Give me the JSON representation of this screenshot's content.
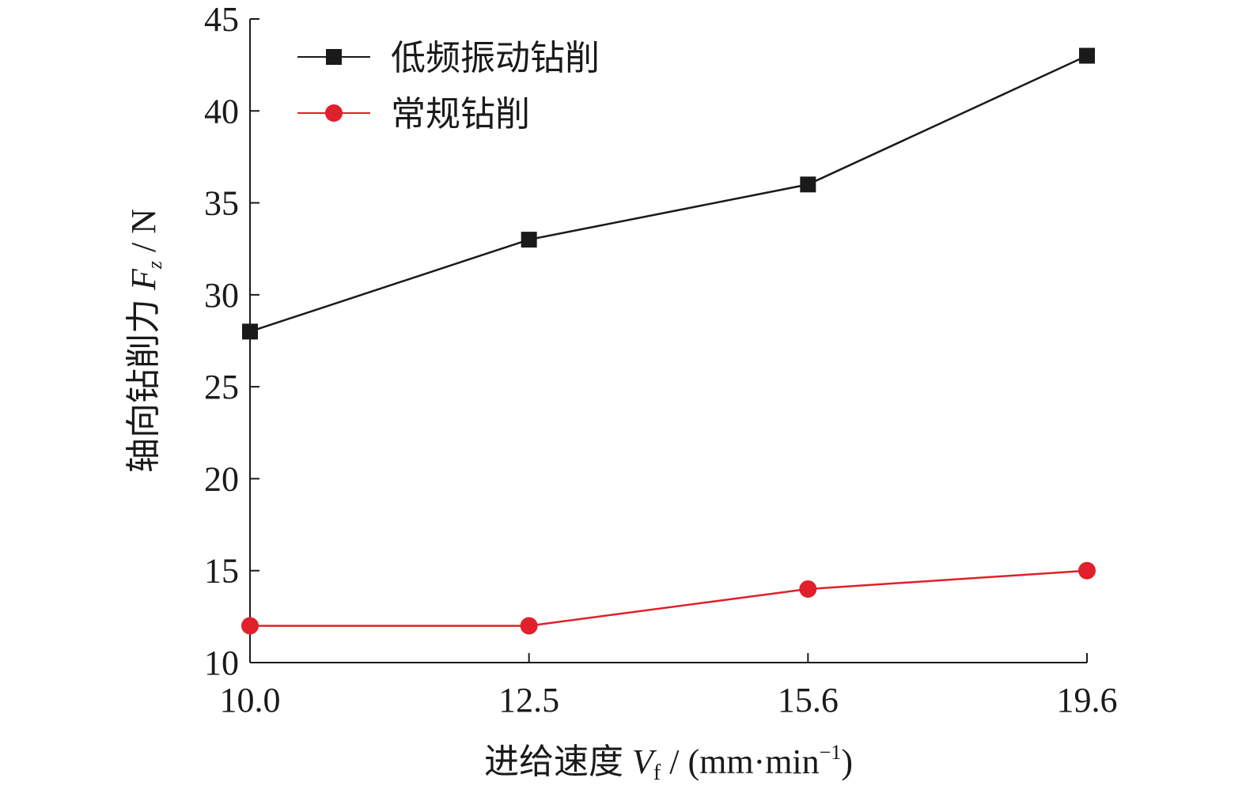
{
  "chart_data": {
    "type": "line",
    "x": [
      "10.0",
      "12.5",
      "15.6",
      "19.6"
    ],
    "x_values": [
      10.0,
      12.5,
      15.6,
      19.6
    ],
    "series": [
      {
        "name": "低频振动钻削",
        "values": [
          28,
          33,
          36,
          43
        ],
        "color": "#1a1a1a",
        "marker": "square"
      },
      {
        "name": "常规钻削",
        "values": [
          12,
          12,
          14,
          15
        ],
        "color": "#e0202a",
        "marker": "circle"
      }
    ],
    "ylim": [
      10,
      45
    ],
    "yticks": [
      "10",
      "15",
      "20",
      "25",
      "30",
      "35",
      "40",
      "45"
    ],
    "xlabel": {
      "text": "进给速度 ",
      "var": "V",
      "sub": "f",
      "unit_open": " / (mm·min",
      "sup": "−1",
      "unit_close": ")"
    },
    "ylabel": {
      "text": "轴向钻削力 ",
      "var": "F",
      "sub": "z",
      "unit": " / N"
    },
    "legend_position": "top-left",
    "grid": false
  }
}
